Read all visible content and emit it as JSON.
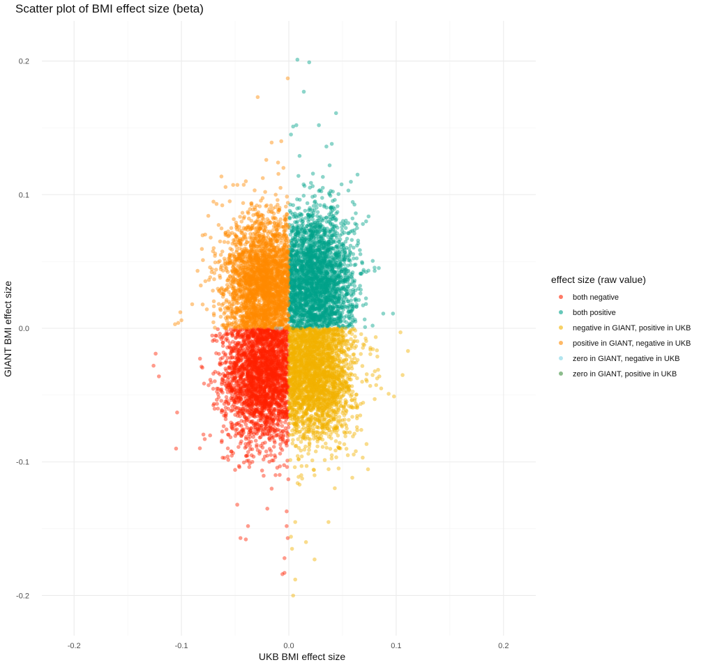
{
  "chart_data": {
    "type": "scatter",
    "title": "Scatter plot of BMI effect size (beta)",
    "xlabel": "UKB BMI effect size",
    "ylabel": "GIANT BMI effect size",
    "xlim": [
      -0.23,
      0.23
    ],
    "ylim": [
      -0.23,
      0.23
    ],
    "x_ticks": [
      -0.2,
      -0.1,
      0.0,
      0.1,
      0.2
    ],
    "y_ticks": [
      -0.2,
      -0.1,
      0.0,
      0.1,
      0.2
    ],
    "x_tick_labels": [
      "-0.2",
      "-0.1",
      "0.0",
      "0.1",
      "0.2"
    ],
    "y_tick_labels": [
      "-0.2",
      "-0.1",
      "0.0",
      "0.1",
      "0.2"
    ],
    "grid": true,
    "legend": {
      "title": "effect size (raw value)",
      "placement": "right"
    },
    "series": [
      {
        "name": "both negative",
        "color": "#ff2200",
        "points": [
          [
            -0.124,
            -0.019
          ],
          [
            -0.126,
            -0.028
          ],
          [
            -0.121,
            -0.036
          ],
          [
            -0.104,
            -0.063
          ],
          [
            -0.105,
            -0.09
          ],
          [
            -0.06,
            -0.097
          ],
          [
            -0.057,
            -0.096
          ],
          [
            -0.048,
            -0.132
          ],
          [
            -0.045,
            -0.157
          ],
          [
            -0.038,
            -0.148
          ],
          [
            -0.04,
            -0.158
          ],
          [
            -0.016,
            -0.12
          ],
          [
            -0.02,
            -0.135
          ],
          [
            -0.002,
            -0.137
          ],
          [
            -0.002,
            -0.148
          ],
          [
            -0.001,
            -0.157
          ],
          [
            -0.004,
            -0.172
          ],
          [
            -0.004,
            -0.183
          ],
          [
            -0.006,
            -0.184
          ],
          [
            -0.05,
            -0.106
          ],
          [
            -0.034,
            -0.1
          ]
        ],
        "bulk": {
          "x_mean": -0.025,
          "x_sd": 0.018,
          "y_mean": -0.035,
          "y_sd": 0.026
        }
      },
      {
        "name": "both positive",
        "color": "#00a28a",
        "points": [
          [
            0.008,
            0.201
          ],
          [
            0.019,
            0.199
          ],
          [
            0.014,
            0.177
          ],
          [
            0.044,
            0.161
          ],
          [
            0.028,
            0.152
          ],
          [
            0.004,
            0.151
          ],
          [
            0.007,
            0.152
          ],
          [
            0.002,
            0.145
          ],
          [
            0.01,
            0.129
          ],
          [
            0.035,
            0.136
          ],
          [
            0.04,
            0.138
          ],
          [
            0.064,
            0.115
          ],
          [
            0.072,
            0.08
          ],
          [
            0.069,
            0.078
          ],
          [
            0.08,
            0.043
          ],
          [
            0.088,
            0.011
          ],
          [
            0.097,
            0.011
          ],
          [
            0.078,
            0.002
          ]
        ],
        "bulk": {
          "x_mean": 0.025,
          "x_sd": 0.018,
          "y_mean": 0.036,
          "y_sd": 0.026
        }
      },
      {
        "name": "negative in GIANT, positive in UKB",
        "color": "#f2b200",
        "points": [
          [
            0.111,
            -0.017
          ],
          [
            0.104,
            -0.003
          ],
          [
            0.106,
            -0.035
          ],
          [
            0.098,
            -0.051
          ],
          [
            0.093,
            -0.049
          ],
          [
            0.086,
            -0.045
          ],
          [
            0.08,
            -0.053
          ],
          [
            0.078,
            -0.035
          ],
          [
            0.054,
            -0.075
          ],
          [
            0.04,
            -0.095
          ],
          [
            0.037,
            -0.145
          ],
          [
            0.024,
            -0.173
          ],
          [
            0.016,
            -0.16
          ],
          [
            0.006,
            -0.145
          ],
          [
            0.004,
            -0.2
          ],
          [
            0.003,
            -0.165
          ],
          [
            0.006,
            -0.188
          ],
          [
            0.002,
            -0.156
          ],
          [
            0.024,
            -0.11
          ],
          [
            0.01,
            -0.117
          ]
        ],
        "bulk": {
          "x_mean": 0.025,
          "x_sd": 0.018,
          "y_mean": -0.034,
          "y_sd": 0.025
        }
      },
      {
        "name": "positive in GIANT, negative in UKB",
        "color": "#ff8a00",
        "points": [
          [
            -0.001,
            0.187
          ],
          [
            -0.029,
            0.173
          ],
          [
            -0.016,
            0.139
          ],
          [
            -0.007,
            0.14
          ],
          [
            -0.101,
            0.012
          ],
          [
            -0.1,
            0.006
          ],
          [
            -0.103,
            0.004
          ],
          [
            -0.106,
            0.003
          ],
          [
            -0.08,
            0.051
          ],
          [
            -0.085,
            0.043
          ],
          [
            -0.082,
            0.032
          ],
          [
            -0.062,
            0.092
          ],
          [
            -0.055,
            0.095
          ],
          [
            -0.04,
            0.11
          ],
          [
            -0.021,
            0.126
          ],
          [
            -0.01,
            0.124
          ],
          [
            -0.005,
            0.12
          ],
          [
            -0.09,
            0.018
          ],
          [
            -0.07,
            0.06
          ]
        ],
        "bulk": {
          "x_mean": -0.024,
          "x_sd": 0.018,
          "y_mean": 0.034,
          "y_sd": 0.025
        }
      },
      {
        "name": "zero in GIANT, negative in UKB",
        "color": "#7ed4e4",
        "points": [
          [
            -0.012,
            0.0
          ],
          [
            -0.009,
            0.0
          ],
          [
            -0.007,
            0.0
          ]
        ]
      },
      {
        "name": "zero in GIANT, positive in UKB",
        "color": "#3f8f3f",
        "points": [
          [
            0.004,
            0.0
          ],
          [
            0.011,
            0.0
          ]
        ]
      }
    ]
  }
}
